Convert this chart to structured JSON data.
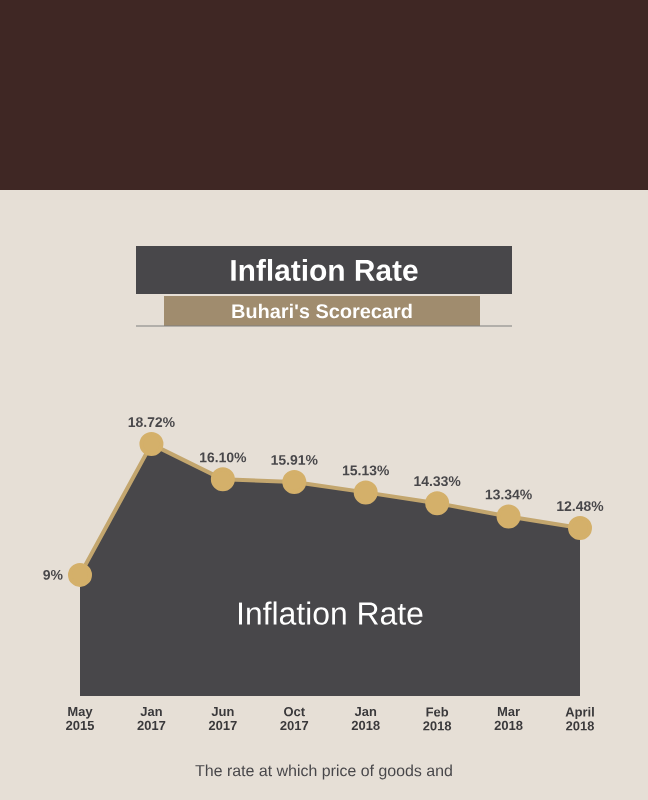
{
  "chart_data": {
    "type": "area",
    "title": "Inflation Rate",
    "subtitle": "Buhari's Scorecard",
    "categories": [
      "May 2015",
      "Jan 2017",
      "Jun 2017",
      "Oct 2017",
      "Jan 2018",
      "Feb 2018",
      "Mar 2018",
      "April 2018"
    ],
    "series": [
      {
        "color": "#d4b06a",
        "values": [
          9,
          18.72,
          16.1,
          15.91,
          15.13,
          14.33,
          13.34,
          12.48
        ],
        "value_labels": [
          "9%",
          "18.72%",
          "16.10%",
          "15.91%",
          "15.13%",
          "14.33%",
          "13.34%",
          "12.48%"
        ]
      }
    ],
    "marker": "circle",
    "annotations": [
      "Inflation Rate",
      "The rate at which price of goods and"
    ]
  }
}
